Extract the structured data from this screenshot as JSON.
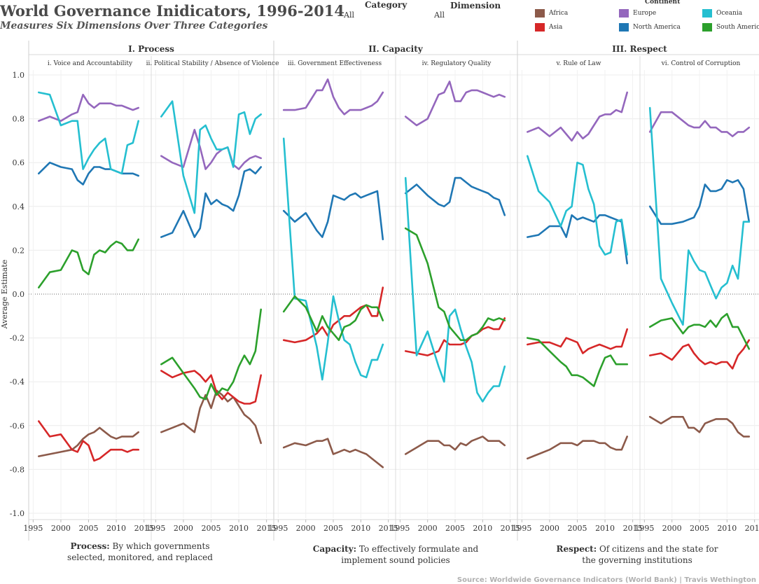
{
  "header": {
    "title": "World Governance Inidicators, 1996-2014",
    "subtitle": "Measures Six Dimensions Over Three Categories"
  },
  "filters": {
    "category": {
      "label": "Category",
      "value": "All"
    },
    "dimension": {
      "label": "Dimension",
      "value": "All"
    }
  },
  "legend": {
    "title": "Continent",
    "items": [
      {
        "name": "Africa",
        "color": "#8c5a4a"
      },
      {
        "name": "Europe",
        "color": "#9467bd"
      },
      {
        "name": "Oceania",
        "color": "#25bfd0"
      },
      {
        "name": "Asia",
        "color": "#d62728"
      },
      {
        "name": "North America",
        "color": "#1f77b4"
      },
      {
        "name": "South America",
        "color": "#2ca02c"
      }
    ]
  },
  "footer": {
    "process": {
      "bold": "Process:",
      "rest": " By which governments selected, monitored, and replaced"
    },
    "capacity": {
      "bold": "Capacity:",
      "rest": " To effectively formulate and implement sound policies"
    },
    "respect": {
      "bold": "Respect:",
      "rest": " Of citizens and the state for the governing institutions"
    },
    "source": "Source: Worldwide Governance Indicators (World Bank) | Travis Wethington"
  },
  "chart_data": {
    "type": "line",
    "ylabel": "Average Estimate",
    "ylim": [
      -1.0,
      1.0
    ],
    "yticks": [
      "1.0",
      "0.8",
      "0.6",
      "0.4",
      "0.2",
      "0.0",
      "-0.2",
      "-0.4",
      "-0.6",
      "-0.8",
      "-1.0"
    ],
    "xticks": [
      "1995",
      "2000",
      "2005",
      "2010",
      "2015"
    ],
    "x": [
      1996,
      1998,
      2000,
      2002,
      2003,
      2004,
      2005,
      2006,
      2007,
      2008,
      2009,
      2010,
      2011,
      2012,
      2013,
      2014
    ],
    "categories": [
      {
        "title": "I. Process",
        "panels": [
          0,
          1
        ]
      },
      {
        "title": "II. Capacity",
        "panels": [
          2,
          3
        ]
      },
      {
        "title": "III. Respect",
        "panels": [
          4,
          5
        ]
      }
    ],
    "panels": [
      {
        "title": "i. Voice and Accountability",
        "series": [
          {
            "name": "Africa",
            "values": [
              -0.74,
              -0.73,
              -0.72,
              -0.71,
              -0.69,
              -0.66,
              -0.64,
              -0.63,
              -0.61,
              -0.63,
              -0.65,
              -0.66,
              -0.65,
              -0.65,
              -0.65,
              -0.63
            ]
          },
          {
            "name": "Asia",
            "values": [
              -0.58,
              -0.65,
              -0.64,
              -0.71,
              -0.72,
              -0.67,
              -0.69,
              -0.76,
              -0.75,
              -0.73,
              -0.71,
              -0.71,
              -0.71,
              -0.72,
              -0.71,
              -0.71
            ]
          },
          {
            "name": "Europe",
            "values": [
              0.79,
              0.81,
              0.79,
              0.82,
              0.83,
              0.91,
              0.87,
              0.85,
              0.87,
              0.87,
              0.87,
              0.86,
              0.86,
              0.85,
              0.84,
              0.85
            ]
          },
          {
            "name": "North America",
            "values": [
              0.55,
              0.6,
              0.58,
              0.57,
              0.52,
              0.5,
              0.55,
              0.58,
              0.58,
              0.57,
              0.57,
              0.56,
              0.55,
              0.55,
              0.55,
              0.54
            ]
          },
          {
            "name": "Oceania",
            "values": [
              0.92,
              0.91,
              0.77,
              0.79,
              0.79,
              0.57,
              0.62,
              0.66,
              0.69,
              0.71,
              0.57,
              0.56,
              0.55,
              0.68,
              0.69,
              0.79
            ]
          },
          {
            "name": "South America",
            "values": [
              0.03,
              0.1,
              0.11,
              0.2,
              0.19,
              0.11,
              0.09,
              0.18,
              0.2,
              0.19,
              0.22,
              0.24,
              0.23,
              0.2,
              0.2,
              0.25
            ]
          }
        ]
      },
      {
        "title": "ii. Political Stability / Absence of Violence",
        "series": [
          {
            "name": "Africa",
            "values": [
              -0.63,
              -0.61,
              -0.59,
              -0.63,
              -0.52,
              -0.46,
              -0.52,
              -0.44,
              -0.46,
              -0.49,
              -0.47,
              -0.51,
              -0.55,
              -0.57,
              -0.6,
              -0.68
            ]
          },
          {
            "name": "Asia",
            "values": [
              -0.35,
              -0.38,
              -0.36,
              -0.35,
              -0.37,
              -0.4,
              -0.37,
              -0.45,
              -0.48,
              -0.45,
              -0.47,
              -0.49,
              -0.5,
              -0.5,
              -0.49,
              -0.37
            ]
          },
          {
            "name": "Europe",
            "values": [
              0.63,
              0.6,
              0.58,
              0.75,
              0.67,
              0.57,
              0.6,
              0.64,
              0.66,
              0.67,
              0.59,
              0.57,
              0.6,
              0.62,
              0.63,
              0.62
            ]
          },
          {
            "name": "North America",
            "values": [
              0.26,
              0.28,
              0.38,
              0.26,
              0.3,
              0.46,
              0.41,
              0.43,
              0.41,
              0.4,
              0.38,
              0.45,
              0.56,
              0.57,
              0.55,
              0.58
            ]
          },
          {
            "name": "Oceania",
            "values": [
              0.81,
              0.88,
              0.54,
              0.37,
              0.75,
              0.77,
              0.71,
              0.66,
              0.66,
              0.67,
              0.58,
              0.82,
              0.83,
              0.73,
              0.8,
              0.82
            ]
          },
          {
            "name": "South America",
            "values": [
              -0.32,
              -0.29,
              -0.36,
              -0.43,
              -0.47,
              -0.48,
              -0.41,
              -0.46,
              -0.43,
              -0.44,
              -0.4,
              -0.33,
              -0.28,
              -0.32,
              -0.26,
              -0.07
            ]
          }
        ]
      },
      {
        "title": "iii. Government Effectiveness",
        "series": [
          {
            "name": "Africa",
            "values": [
              -0.7,
              -0.68,
              -0.69,
              -0.67,
              -0.67,
              -0.66,
              -0.73,
              -0.72,
              -0.71,
              -0.72,
              -0.71,
              -0.72,
              -0.73,
              -0.75,
              -0.77,
              -0.79
            ]
          },
          {
            "name": "Asia",
            "values": [
              -0.21,
              -0.22,
              -0.21,
              -0.18,
              -0.15,
              -0.19,
              -0.14,
              -0.12,
              -0.1,
              -0.1,
              -0.08,
              -0.06,
              -0.05,
              -0.1,
              -0.1,
              0.03
            ]
          },
          {
            "name": "Europe",
            "values": [
              0.84,
              0.84,
              0.85,
              0.93,
              0.93,
              0.98,
              0.9,
              0.85,
              0.82,
              0.84,
              0.84,
              0.84,
              0.85,
              0.86,
              0.88,
              0.92
            ]
          },
          {
            "name": "North America",
            "values": [
              0.38,
              0.33,
              0.37,
              0.29,
              0.26,
              0.33,
              0.45,
              0.44,
              0.43,
              0.45,
              0.46,
              0.44,
              0.45,
              0.46,
              0.47,
              0.25
            ]
          },
          {
            "name": "Oceania",
            "values": [
              0.71,
              -0.02,
              -0.03,
              -0.24,
              -0.39,
              -0.22,
              -0.01,
              -0.12,
              -0.21,
              -0.23,
              -0.31,
              -0.37,
              -0.38,
              -0.3,
              -0.3,
              -0.23
            ]
          },
          {
            "name": "South America",
            "values": [
              -0.08,
              -0.01,
              -0.06,
              -0.17,
              -0.1,
              -0.15,
              -0.18,
              -0.21,
              -0.15,
              -0.14,
              -0.12,
              -0.07,
              -0.05,
              -0.06,
              -0.06,
              -0.12
            ]
          }
        ]
      },
      {
        "title": "iv. Regulatory Quality",
        "series": [
          {
            "name": "Africa",
            "values": [
              -0.73,
              -0.7,
              -0.67,
              -0.67,
              -0.69,
              -0.69,
              -0.71,
              -0.68,
              -0.69,
              -0.67,
              -0.66,
              -0.65,
              -0.67,
              -0.67,
              -0.67,
              -0.69
            ]
          },
          {
            "name": "Asia",
            "values": [
              -0.26,
              -0.27,
              -0.28,
              -0.26,
              -0.21,
              -0.23,
              -0.23,
              -0.23,
              -0.22,
              -0.19,
              -0.18,
              -0.16,
              -0.15,
              -0.16,
              -0.16,
              -0.11
            ]
          },
          {
            "name": "Europe",
            "values": [
              0.81,
              0.77,
              0.8,
              0.91,
              0.92,
              0.97,
              0.88,
              0.88,
              0.92,
              0.93,
              0.93,
              0.92,
              0.91,
              0.9,
              0.91,
              0.9
            ]
          },
          {
            "name": "North America",
            "values": [
              0.46,
              0.5,
              0.45,
              0.41,
              0.4,
              0.42,
              0.53,
              0.53,
              0.51,
              0.49,
              0.48,
              0.47,
              0.46,
              0.44,
              0.43,
              0.36
            ]
          },
          {
            "name": "Oceania",
            "values": [
              0.53,
              -0.28,
              -0.17,
              -0.33,
              -0.4,
              -0.1,
              -0.07,
              -0.16,
              -0.24,
              -0.31,
              -0.45,
              -0.49,
              -0.45,
              -0.42,
              -0.42,
              -0.33
            ]
          },
          {
            "name": "South America",
            "values": [
              0.3,
              0.27,
              0.14,
              -0.06,
              -0.08,
              -0.15,
              -0.18,
              -0.21,
              -0.21,
              -0.19,
              -0.18,
              -0.15,
              -0.11,
              -0.12,
              -0.11,
              -0.12
            ]
          }
        ]
      },
      {
        "title": "v. Rule of Law",
        "series": [
          {
            "name": "Africa",
            "values": [
              -0.75,
              -0.73,
              -0.71,
              -0.68,
              -0.68,
              -0.68,
              -0.69,
              -0.67,
              -0.67,
              -0.67,
              -0.68,
              -0.68,
              -0.7,
              -0.71,
              -0.71,
              -0.65
            ]
          },
          {
            "name": "Asia",
            "values": [
              -0.23,
              -0.22,
              -0.22,
              -0.24,
              -0.2,
              -0.21,
              -0.22,
              -0.27,
              -0.25,
              -0.24,
              -0.23,
              -0.24,
              -0.25,
              -0.24,
              -0.24,
              -0.16
            ]
          },
          {
            "name": "Europe",
            "values": [
              0.74,
              0.76,
              0.72,
              0.76,
              0.73,
              0.7,
              0.74,
              0.71,
              0.73,
              0.77,
              0.81,
              0.82,
              0.82,
              0.84,
              0.83,
              0.92
            ]
          },
          {
            "name": "North America",
            "values": [
              0.26,
              0.27,
              0.31,
              0.31,
              0.26,
              0.36,
              0.34,
              0.35,
              0.34,
              0.33,
              0.36,
              0.36,
              0.35,
              0.34,
              0.33,
              0.14
            ]
          },
          {
            "name": "Oceania",
            "values": [
              0.63,
              0.47,
              0.42,
              0.31,
              0.38,
              0.4,
              0.6,
              0.59,
              0.48,
              0.41,
              0.22,
              0.18,
              0.19,
              0.33,
              0.34,
              0.18
            ]
          },
          {
            "name": "South America",
            "values": [
              -0.2,
              -0.21,
              -0.26,
              -0.31,
              -0.33,
              -0.37,
              -0.37,
              -0.38,
              -0.4,
              -0.42,
              -0.35,
              -0.29,
              -0.28,
              -0.32,
              -0.32,
              -0.32
            ]
          }
        ]
      },
      {
        "title": "vi. Control of Corruption",
        "series": [
          {
            "name": "Africa",
            "values": [
              -0.56,
              -0.59,
              -0.56,
              -0.56,
              -0.61,
              -0.61,
              -0.63,
              -0.59,
              -0.58,
              -0.57,
              -0.57,
              -0.57,
              -0.59,
              -0.63,
              -0.65,
              -0.65
            ]
          },
          {
            "name": "Asia",
            "values": [
              -0.28,
              -0.27,
              -0.3,
              -0.24,
              -0.23,
              -0.27,
              -0.3,
              -0.32,
              -0.31,
              -0.32,
              -0.31,
              -0.31,
              -0.34,
              -0.28,
              -0.25,
              -0.21
            ]
          },
          {
            "name": "Europe",
            "values": [
              0.74,
              0.83,
              0.83,
              0.79,
              0.77,
              0.76,
              0.76,
              0.79,
              0.76,
              0.76,
              0.74,
              0.74,
              0.72,
              0.74,
              0.74,
              0.76
            ]
          },
          {
            "name": "North America",
            "values": [
              0.4,
              0.32,
              0.32,
              0.33,
              0.34,
              0.35,
              0.4,
              0.5,
              0.47,
              0.47,
              0.48,
              0.52,
              0.51,
              0.52,
              0.48,
              0.33
            ]
          },
          {
            "name": "Oceania",
            "values": [
              0.85,
              0.07,
              -0.04,
              -0.14,
              0.2,
              0.15,
              0.11,
              0.1,
              0.04,
              -0.02,
              0.03,
              0.05,
              0.13,
              0.07,
              0.33,
              0.33
            ]
          },
          {
            "name": "South America",
            "values": [
              -0.15,
              -0.12,
              -0.11,
              -0.18,
              -0.15,
              -0.14,
              -0.14,
              -0.15,
              -0.12,
              -0.15,
              -0.11,
              -0.09,
              -0.15,
              -0.15,
              -0.2,
              -0.25
            ]
          }
        ]
      }
    ]
  }
}
